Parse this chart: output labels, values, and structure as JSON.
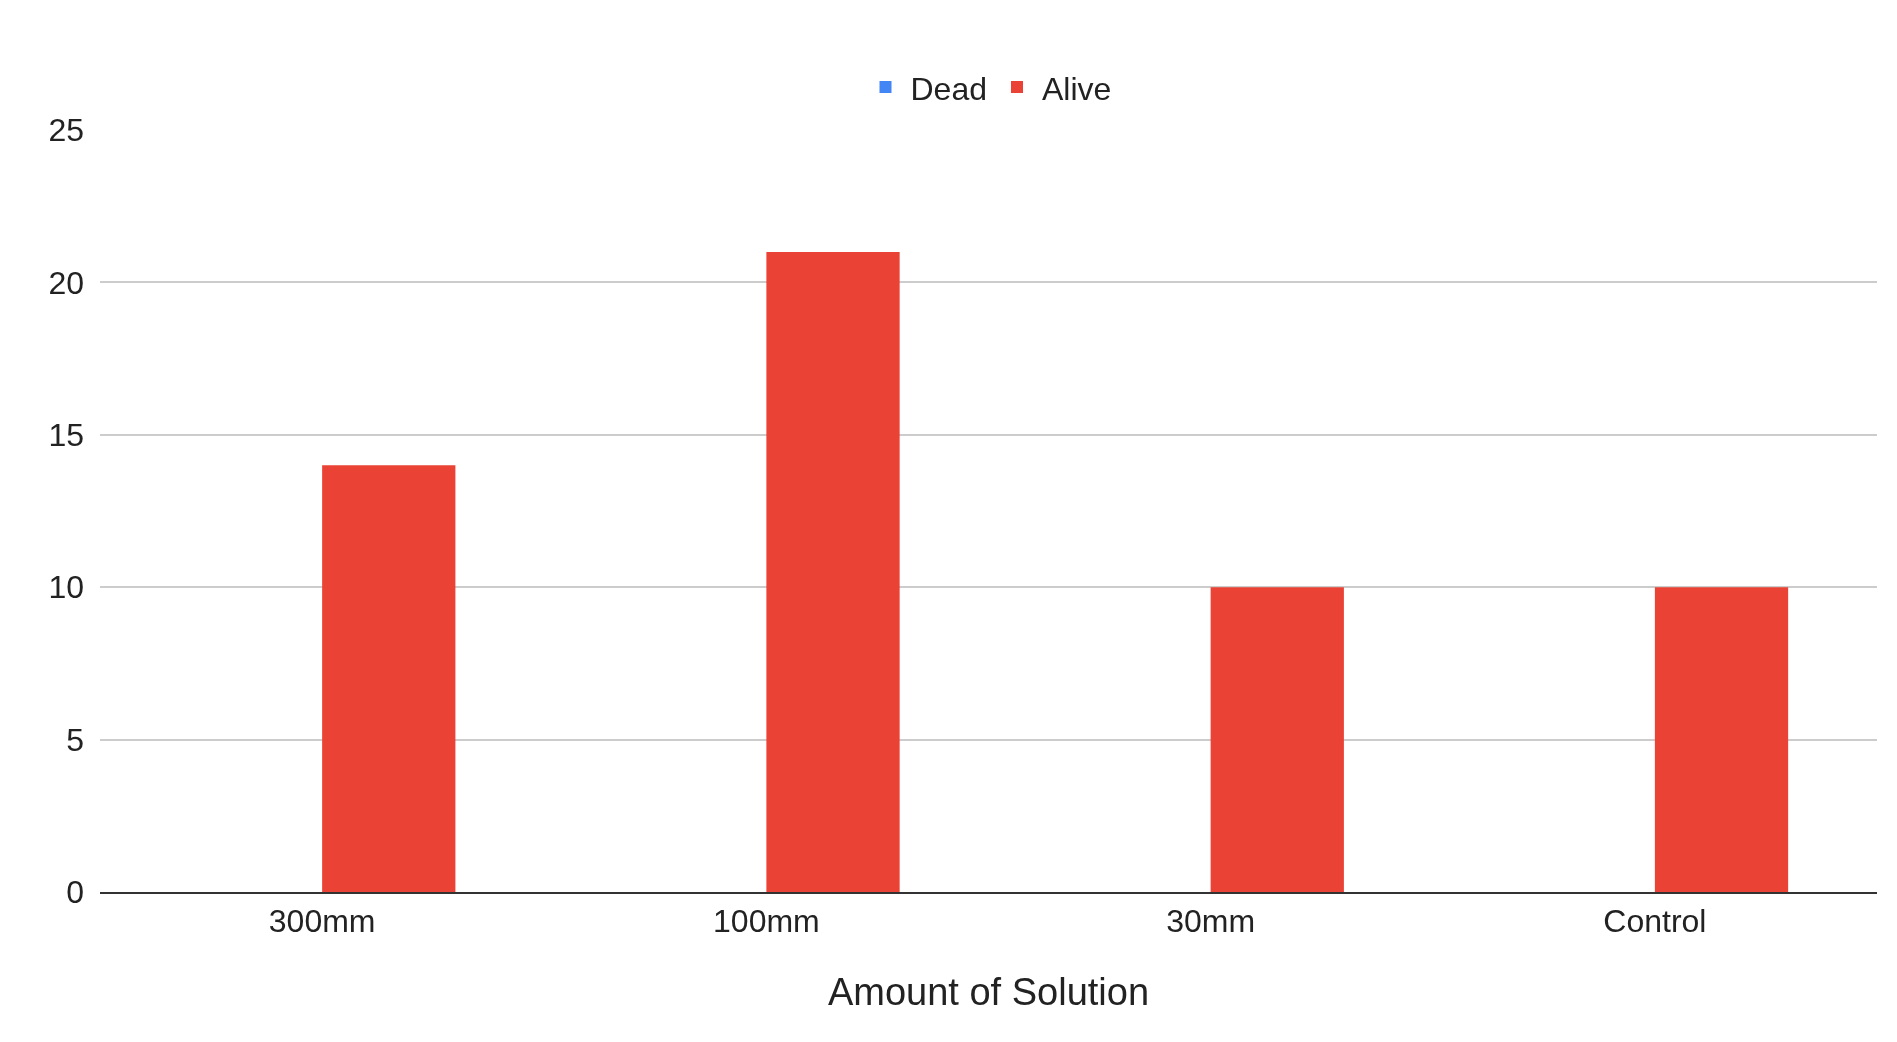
{
  "chart_data": {
    "type": "bar",
    "xlabel": "Amount of Solution",
    "categories": [
      "300mm",
      "100mm",
      "30mm",
      "Control"
    ],
    "series": [
      {
        "name": "Dead",
        "color": "#4285f4",
        "values": [
          0,
          0,
          0,
          0
        ]
      },
      {
        "name": "Alive",
        "color": "#ea4335",
        "values": [
          14,
          21,
          10,
          10
        ]
      }
    ],
    "ylim": [
      0,
      25
    ],
    "yticks": [
      0,
      5,
      10,
      15,
      20,
      25
    ],
    "grid": "y",
    "legend": "top"
  }
}
